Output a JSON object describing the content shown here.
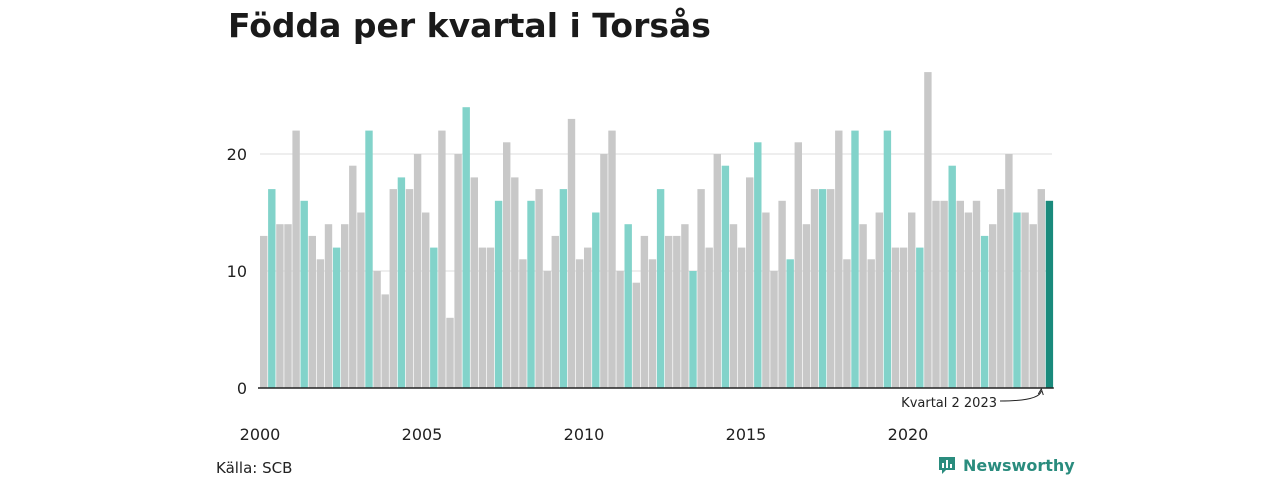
{
  "title": "Födda per kvartal i Torsås",
  "source": "Källa: SCB",
  "brand": "Newsworthy",
  "colors": {
    "q1": "#82d3ca",
    "other": "#c8c8c8",
    "highlight": "#1a8a7c",
    "grid": "#dcdcdc",
    "axis": "#222222"
  },
  "chart_data": {
    "type": "bar",
    "ylim": [
      0,
      27
    ],
    "yticks": [
      0,
      10,
      20
    ],
    "xticks": [
      "2000",
      "2005",
      "2010",
      "2015",
      "2020"
    ],
    "annotation": "Kvartal 2 2023",
    "values": [
      13,
      17,
      14,
      14,
      22,
      16,
      13,
      11,
      14,
      12,
      14,
      19,
      15,
      22,
      10,
      8,
      17,
      18,
      17,
      20,
      15,
      12,
      22,
      6,
      20,
      24,
      18,
      12,
      12,
      16,
      21,
      18,
      11,
      16,
      17,
      10,
      13,
      17,
      23,
      11,
      12,
      15,
      20,
      22,
      10,
      14,
      9,
      13,
      11,
      17,
      13,
      13,
      14,
      10,
      17,
      12,
      20,
      19,
      14,
      12,
      18,
      21,
      15,
      10,
      16,
      11,
      21,
      14,
      17,
      17,
      17,
      22,
      11,
      22,
      14,
      11,
      15,
      22,
      12,
      12,
      15,
      12,
      27,
      16,
      16,
      19,
      16,
      15,
      16,
      13,
      14,
      17,
      20,
      15,
      15,
      14,
      17,
      16
    ],
    "start_year": 2000
  }
}
